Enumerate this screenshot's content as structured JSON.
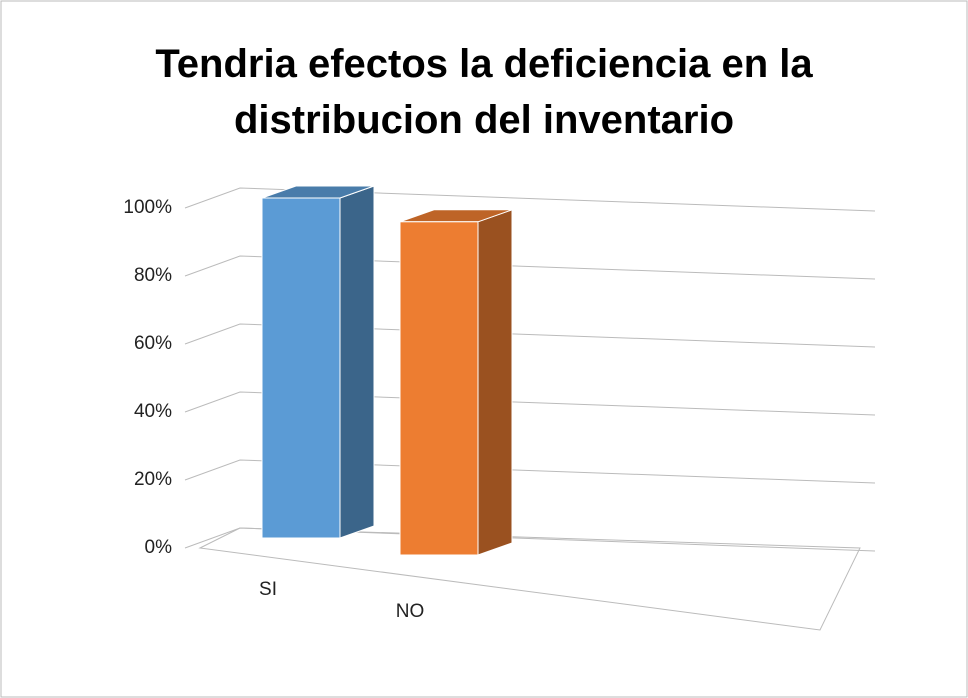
{
  "chart_data": {
    "type": "bar3d",
    "title": "Tendria efectos la deficiencia en la distribucion del inventario",
    "categories": [
      "SI",
      "NO"
    ],
    "values": [
      100,
      98
    ],
    "colors": [
      "#5b9bd5",
      "#ed7d31"
    ],
    "ylim": [
      0,
      100
    ],
    "yticks": [
      {
        "value": 0,
        "label": "0%"
      },
      {
        "value": 20,
        "label": "20%"
      },
      {
        "value": 40,
        "label": "40%"
      },
      {
        "value": 60,
        "label": "60%"
      },
      {
        "value": 80,
        "label": "80%"
      },
      {
        "value": 100,
        "label": "100%"
      }
    ],
    "grid": true
  }
}
